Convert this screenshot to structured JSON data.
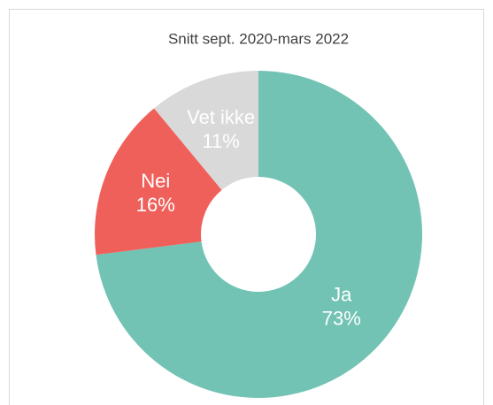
{
  "chart_data": {
    "type": "donut",
    "title": "Snitt sept. 2020-mars 2022",
    "categories": [
      "Ja",
      "Nei",
      "Vet ikke"
    ],
    "values": [
      73,
      16,
      11
    ],
    "value_labels": [
      "73%",
      "16%",
      "11%"
    ],
    "colors": [
      "#72c3b4",
      "#f0605a",
      "#d9d9d9"
    ]
  }
}
